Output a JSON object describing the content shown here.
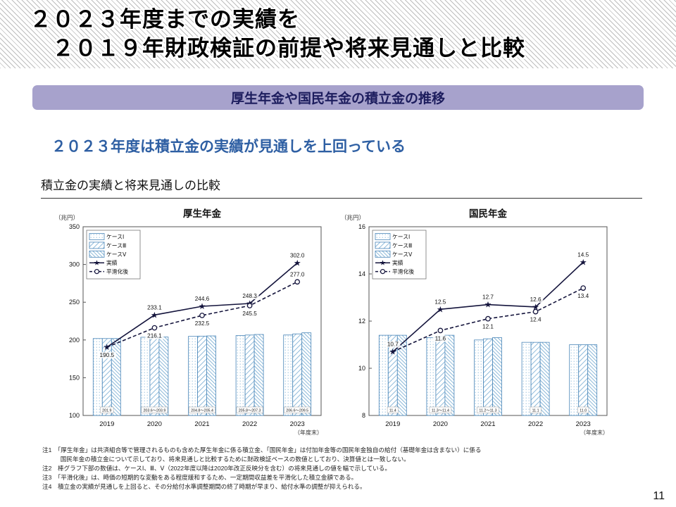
{
  "page": {
    "title_line1": "２０２３年度までの実績を",
    "title_line2": "　２０１９年財政検証の前提や将来見通しと比較",
    "banner": "厚生年金や国民年金の積立金の推移",
    "subtitle": "２０２３年度は積立金の実績が見通しを上回っている",
    "section_title": "積立金の実績と将来見通しの比較",
    "page_number": "11"
  },
  "colors": {
    "banner_bg": "#a7a2cc",
    "banner_text": "#1d1d5e",
    "subtitle_text": "#2e5fa3",
    "bar_stroke": "#4a86b8",
    "bar_hatch_light": "#9fc4e0",
    "bar_hatch_mid": "#74aad2",
    "bar_hatch_dark": "#5d9cc9",
    "line_color": "#14143c"
  },
  "notes": [
    "注1　「厚生年金」は共済組合等で管理されるものも含めた厚生年金に係る積立金、「国民年金」は付加年金等の国民年金独自の給付（基礎年金は含まない）に係る",
    "　　　国民年金の積立金について示しており、将来見通しと比較するために財政検証ベースの数値としており、決算値とは一致しない。",
    "注2　棒グラフ下部の数値は、ケースⅠ、Ⅲ、Ⅴ（2022年度以降は2020年改正反映分を含む）の将来見通しの値を幅で示している。",
    "注3　「平滑化後」は、時価の短期的な変動をある程度緩和するため、一定期間収益差を平滑化した積立金額である。",
    "注4　積立金の実績が見通しを上回ると、その分給付水準調整期間の終了時期が早まり、給付水準の調整が抑えられる。"
  ],
  "chart_data": [
    {
      "type": "bar+line",
      "title": "厚生年金",
      "unit": "（兆円）",
      "x_suffix": "（年度末）",
      "categories": [
        "2019",
        "2020",
        "2021",
        "2022",
        "2023"
      ],
      "ylim": [
        100,
        350
      ],
      "yticks": [
        100,
        150,
        200,
        250,
        300,
        350
      ],
      "legend": [
        "ケースⅠ",
        "ケースⅢ",
        "ケースⅤ",
        "実績",
        "平滑化後"
      ],
      "bars": {
        "low": [
          201.9,
          203.6,
          204.8,
          205.8,
          206.6
        ],
        "high": [
          201.9,
          203.9,
          205.4,
          207.3,
          209.5
        ],
        "labels": [
          "201.9",
          "203.6～203.9",
          "204.8～205.4",
          "205.8～207.3",
          "206.6～209.5"
        ]
      },
      "series": [
        {
          "name": "実績",
          "marker": "star",
          "style": "solid",
          "values": [
            190.5,
            233.1,
            244.6,
            248.3,
            302.0
          ],
          "labels": [
            "190.5",
            "233.1",
            "244.6",
            "248.3",
            "302.0"
          ],
          "label_pos": [
            "below",
            "above",
            "above",
            "above",
            "above"
          ]
        },
        {
          "name": "平滑化後",
          "marker": "circle",
          "style": "dashed",
          "values": [
            190.5,
            216.1,
            232.5,
            245.5,
            277.0
          ],
          "labels": [
            "",
            "216.1",
            "232.5",
            "245.5",
            "277.0"
          ],
          "label_pos": [
            "",
            "below",
            "below",
            "below",
            "above"
          ]
        }
      ]
    },
    {
      "type": "bar+line",
      "title": "国民年金",
      "unit": "（兆円）",
      "x_suffix": "（年度末）",
      "categories": [
        "2019",
        "2020",
        "2021",
        "2022",
        "2023"
      ],
      "ylim": [
        8,
        16
      ],
      "yticks": [
        8,
        10,
        12,
        14,
        16
      ],
      "legend": [
        "ケースⅠ",
        "ケースⅢ",
        "ケースⅤ",
        "実績",
        "平滑化後"
      ],
      "bars": {
        "low": [
          11.4,
          11.3,
          11.2,
          11.1,
          11.0
        ],
        "high": [
          11.4,
          11.4,
          11.3,
          11.1,
          11.0
        ],
        "labels": [
          "11.4",
          "11.3～11.4",
          "11.2～11.3",
          "11.1",
          "11.0"
        ]
      },
      "series": [
        {
          "name": "実績",
          "marker": "star",
          "style": "solid",
          "values": [
            10.7,
            12.5,
            12.7,
            12.6,
            14.5
          ],
          "labels": [
            "10.7",
            "12.5",
            "12.7",
            "12.6",
            "14.5"
          ],
          "label_pos": [
            "above",
            "above",
            "above",
            "above",
            "above"
          ]
        },
        {
          "name": "平滑化後",
          "marker": "circle",
          "style": "dashed",
          "values": [
            10.7,
            11.6,
            12.1,
            12.4,
            13.4
          ],
          "labels": [
            "",
            "11.6",
            "12.1",
            "12.4",
            "13.4"
          ],
          "label_pos": [
            "",
            "below",
            "below",
            "below",
            "below"
          ]
        }
      ]
    }
  ]
}
